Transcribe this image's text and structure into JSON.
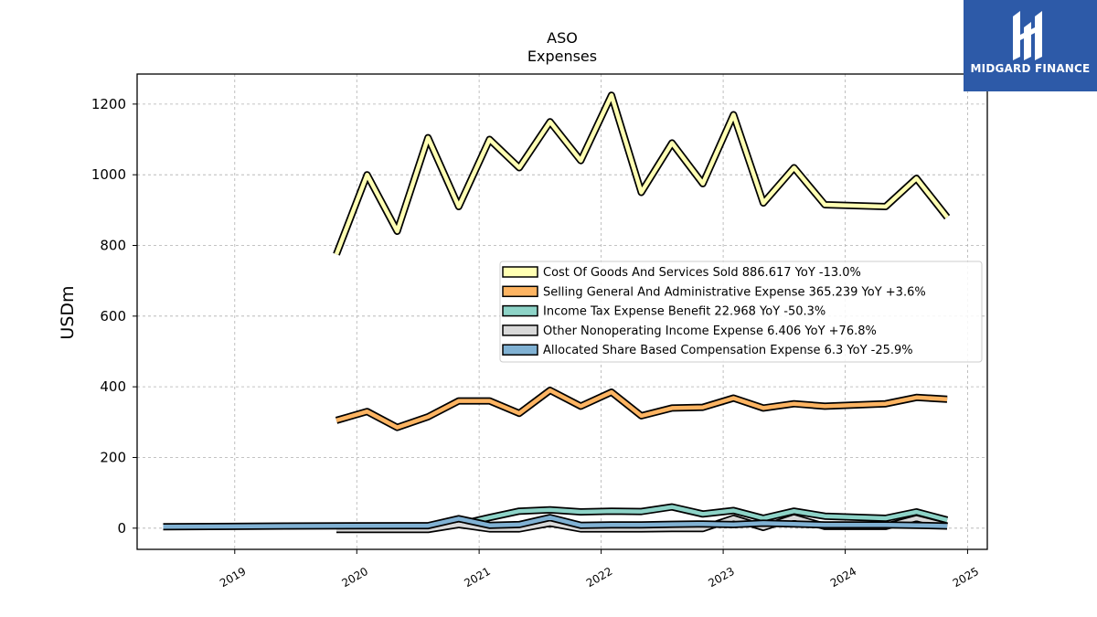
{
  "chart_data": {
    "type": "line",
    "title": "ASO",
    "subtitle": "Expenses",
    "ylabel": "USDm",
    "xlabel": "",
    "x_ticks": [
      "2019",
      "2020",
      "2021",
      "2022",
      "2023",
      "2024",
      "2025"
    ],
    "y_ticks": [
      0,
      200,
      400,
      600,
      800,
      1000,
      1200
    ],
    "xlim": [
      "2018-03-15",
      "2025-03-01"
    ],
    "ylim": [
      -60,
      1285
    ],
    "grid": true,
    "legend_position": "center-right",
    "series": [
      {
        "name": "Cost Of Goods And Services Sold",
        "legend": "Cost Of Goods And Services Sold  886.617 YoY -13.0%",
        "color": "#ffffb3",
        "x": [
          "2019-11-01",
          "2020-02-01",
          "2020-05-01",
          "2020-08-01",
          "2020-11-01",
          "2021-02-01",
          "2021-05-01",
          "2021-08-01",
          "2021-11-01",
          "2022-02-01",
          "2022-05-01",
          "2022-08-01",
          "2022-11-01",
          "2023-02-01",
          "2023-05-01",
          "2023-08-01",
          "2023-11-01",
          "2024-05-01",
          "2024-08-01",
          "2024-11-01"
        ],
        "y": [
          775,
          1000,
          840,
          1105,
          910,
          1100,
          1020,
          1150,
          1040,
          1225,
          950,
          1090,
          975,
          1170,
          920,
          1020,
          915,
          910,
          990,
          880
        ]
      },
      {
        "name": "Selling General And Administrative Expense",
        "legend": "Selling General And Administrative Expense  365.239 YoY +3.6%",
        "color": "#fdb462",
        "x": [
          "2019-11-01",
          "2020-02-01",
          "2020-05-01",
          "2020-08-01",
          "2020-11-01",
          "2021-02-01",
          "2021-05-01",
          "2021-08-01",
          "2021-11-01",
          "2022-02-01",
          "2022-05-01",
          "2022-08-01",
          "2022-11-01",
          "2023-02-01",
          "2023-05-01",
          "2023-08-01",
          "2023-11-01",
          "2024-05-01",
          "2024-08-01",
          "2024-11-01"
        ],
        "y": [
          305,
          330,
          285,
          315,
          360,
          360,
          325,
          390,
          345,
          385,
          318,
          340,
          342,
          368,
          340,
          352,
          345,
          352,
          370,
          365
        ]
      },
      {
        "name": "Income Tax Expense Benefit",
        "legend": "Income Tax Expense Benefit  22.968 YoY -50.3%",
        "color": "#8dd3c7",
        "x": [
          "2020-11-01",
          "2021-02-01",
          "2021-05-01",
          "2021-08-01",
          "2021-11-01",
          "2022-02-01",
          "2022-05-01",
          "2022-08-01",
          "2022-11-01",
          "2023-02-01",
          "2023-05-01",
          "2023-08-01",
          "2023-11-01",
          "2024-05-01",
          "2024-08-01",
          "2024-11-01"
        ],
        "y": [
          10,
          30,
          48,
          52,
          46,
          48,
          47,
          60,
          40,
          50,
          28,
          48,
          34,
          28,
          46,
          23
        ]
      },
      {
        "name": "Other Nonoperating Income Expense",
        "legend": "Other Nonoperating Income Expense  6.406 YoY +76.8%",
        "color": "#d9d9d9",
        "x": [
          "2019-11-01",
          "2020-02-01",
          "2020-05-01",
          "2020-08-01",
          "2020-11-01",
          "2021-02-01",
          "2021-05-01",
          "2021-08-01",
          "2021-11-01",
          "2022-02-01",
          "2022-05-01",
          "2022-08-01",
          "2022-11-01",
          "2023-02-01",
          "2023-05-01",
          "2023-08-01",
          "2023-11-01",
          "2024-05-01",
          "2024-08-01",
          "2024-11-01"
        ],
        "y": [
          -4,
          -4,
          -4,
          -4,
          10,
          -2,
          -2,
          14,
          -2,
          -2,
          -2,
          -1,
          -1,
          28,
          2,
          30,
          5,
          5,
          28,
          6
        ]
      },
      {
        "name": "Allocated Share Based Compensation Expense",
        "legend": "Allocated Share Based Compensation Expense  6.3 YoY -25.9%",
        "color": "#80b1d3",
        "x": [
          "2018-06-01",
          "2019-06-01",
          "2020-06-01",
          "2020-08-01",
          "2020-11-01",
          "2021-02-01",
          "2021-05-01",
          "2021-08-01",
          "2021-11-01",
          "2022-02-01",
          "2022-05-01",
          "2022-08-01",
          "2022-11-01",
          "2023-02-01",
          "2023-05-01",
          "2023-08-01",
          "2023-11-01",
          "2024-05-01",
          "2024-08-01",
          "2024-11-01"
        ],
        "y": [
          4,
          6,
          7,
          7,
          27,
          8,
          10,
          30,
          8,
          9,
          9,
          11,
          12,
          10,
          14,
          12,
          9,
          9,
          8,
          6
        ]
      }
    ]
  },
  "logo": {
    "text": "MIDGARD FINANCE",
    "background": "#2d5aa8"
  }
}
